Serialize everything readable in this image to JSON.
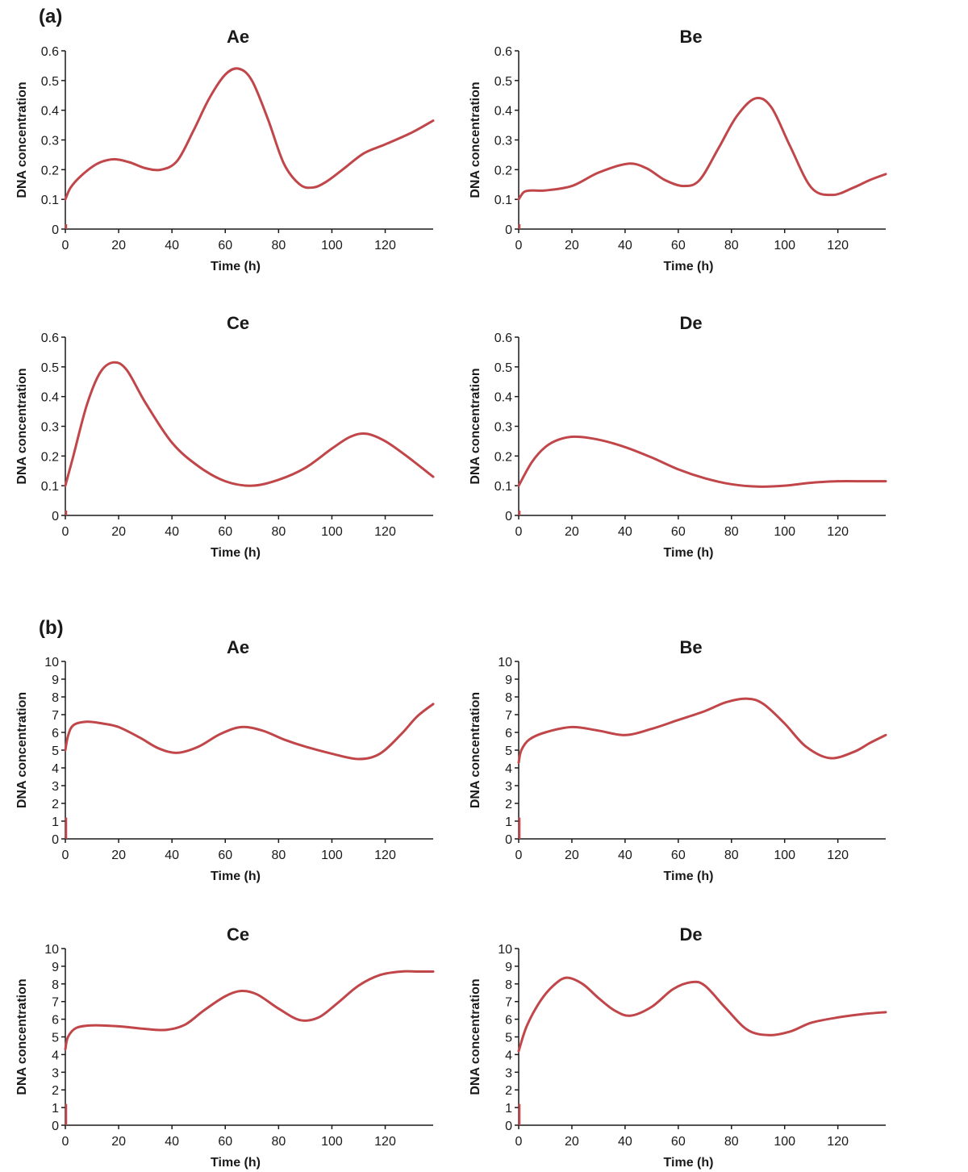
{
  "series_color": "#c0464a",
  "panels": [
    {
      "label": "(a)"
    },
    {
      "label": "(b)"
    }
  ],
  "chart_data": [
    {
      "type": "line",
      "panel": "(a)",
      "title": "Ae",
      "xlabel": "Time (h)",
      "ylabel": "DNA concentration",
      "xlim": [
        0,
        138
      ],
      "ylim": [
        0,
        0.6
      ],
      "xticks": [
        0,
        20,
        40,
        60,
        80,
        100,
        120
      ],
      "yticks": [
        0,
        0.1,
        0.2,
        0.3,
        0.4,
        0.5,
        0.6
      ],
      "ytick_labels": [
        "0",
        "0.1",
        "0.2",
        "0.3",
        "0.4",
        "0.5",
        "0.6"
      ],
      "series": [
        {
          "name": "Ae",
          "x": [
            0,
            2,
            6,
            12,
            18,
            24,
            30,
            36,
            42,
            48,
            54,
            60,
            65,
            70,
            76,
            82,
            88,
            93,
            98,
            104,
            112,
            120,
            130,
            138
          ],
          "y": [
            0.1,
            0.14,
            0.18,
            0.22,
            0.235,
            0.225,
            0.205,
            0.2,
            0.23,
            0.33,
            0.44,
            0.52,
            0.54,
            0.5,
            0.37,
            0.22,
            0.15,
            0.14,
            0.16,
            0.2,
            0.255,
            0.285,
            0.325,
            0.365
          ]
        }
      ]
    },
    {
      "type": "line",
      "panel": "(a)",
      "title": "Be",
      "xlabel": "Time (h)",
      "ylabel": "DNA concentration",
      "xlim": [
        0,
        138
      ],
      "ylim": [
        0,
        0.6
      ],
      "xticks": [
        0,
        20,
        40,
        60,
        80,
        100,
        120
      ],
      "yticks": [
        0,
        0.1,
        0.2,
        0.3,
        0.4,
        0.5,
        0.6
      ],
      "ytick_labels": [
        "0",
        "0.1",
        "0.2",
        "0.3",
        "0.4",
        "0.5",
        "0.6"
      ],
      "series": [
        {
          "name": "Be",
          "x": [
            0,
            2,
            5,
            10,
            20,
            30,
            41,
            48,
            55,
            62,
            68,
            75,
            82,
            89,
            95,
            102,
            110,
            118,
            126,
            132,
            138
          ],
          "y": [
            0.1,
            0.125,
            0.13,
            0.13,
            0.145,
            0.19,
            0.22,
            0.205,
            0.165,
            0.145,
            0.165,
            0.27,
            0.38,
            0.44,
            0.41,
            0.28,
            0.14,
            0.115,
            0.14,
            0.165,
            0.185
          ]
        }
      ]
    },
    {
      "type": "line",
      "panel": "(a)",
      "title": "Ce",
      "xlabel": "Time (h)",
      "ylabel": "DNA concentration",
      "xlim": [
        0,
        138
      ],
      "ylim": [
        0,
        0.6
      ],
      "xticks": [
        0,
        20,
        40,
        60,
        80,
        100,
        120
      ],
      "yticks": [
        0,
        0.1,
        0.2,
        0.3,
        0.4,
        0.5,
        0.6
      ],
      "ytick_labels": [
        "0",
        "0.1",
        "0.2",
        "0.3",
        "0.4",
        "0.5",
        "0.6"
      ],
      "series": [
        {
          "name": "Ce",
          "x": [
            0,
            3,
            8,
            13,
            18,
            23,
            30,
            40,
            50,
            60,
            70,
            80,
            90,
            100,
            107,
            113,
            120,
            128,
            138
          ],
          "y": [
            0.1,
            0.2,
            0.37,
            0.48,
            0.515,
            0.49,
            0.38,
            0.245,
            0.165,
            0.115,
            0.1,
            0.12,
            0.16,
            0.225,
            0.265,
            0.275,
            0.25,
            0.2,
            0.13
          ]
        }
      ]
    },
    {
      "type": "line",
      "panel": "(a)",
      "title": "De",
      "xlabel": "Time (h)",
      "ylabel": "DNA concentration",
      "xlim": [
        0,
        138
      ],
      "ylim": [
        0,
        0.6
      ],
      "xticks": [
        0,
        20,
        40,
        60,
        80,
        100,
        120
      ],
      "yticks": [
        0,
        0.1,
        0.2,
        0.3,
        0.4,
        0.5,
        0.6
      ],
      "ytick_labels": [
        "0",
        "0.1",
        "0.2",
        "0.3",
        "0.4",
        "0.5",
        "0.6"
      ],
      "series": [
        {
          "name": "De",
          "x": [
            0,
            5,
            10,
            15,
            21,
            30,
            40,
            50,
            60,
            70,
            80,
            90,
            100,
            110,
            120,
            130,
            138
          ],
          "y": [
            0.1,
            0.18,
            0.23,
            0.255,
            0.265,
            0.255,
            0.23,
            0.195,
            0.155,
            0.125,
            0.105,
            0.097,
            0.1,
            0.11,
            0.115,
            0.115,
            0.115
          ]
        }
      ]
    },
    {
      "type": "line",
      "panel": "(b)",
      "title": "Ae",
      "xlabel": "Time (h)",
      "ylabel": "DNA concentration",
      "xlim": [
        0,
        138
      ],
      "ylim": [
        0,
        10
      ],
      "xticks": [
        0,
        20,
        40,
        60,
        80,
        100,
        120
      ],
      "yticks": [
        0,
        1,
        2,
        3,
        4,
        5,
        6,
        7,
        8,
        9,
        10
      ],
      "ytick_labels": [
        "0",
        "1",
        "2",
        "3",
        "4",
        "5",
        "6",
        "7",
        "8",
        "9",
        "10"
      ],
      "series": [
        {
          "name": "Ae",
          "x": [
            0,
            1,
            3,
            8,
            14,
            20,
            28,
            35,
            42,
            50,
            58,
            66,
            74,
            82,
            90,
            100,
            110,
            118,
            126,
            132,
            138
          ],
          "y": [
            5.0,
            5.8,
            6.4,
            6.6,
            6.5,
            6.3,
            5.7,
            5.1,
            4.85,
            5.2,
            5.9,
            6.3,
            6.1,
            5.6,
            5.2,
            4.8,
            4.5,
            4.8,
            5.9,
            6.9,
            7.6
          ]
        }
      ]
    },
    {
      "type": "line",
      "panel": "(b)",
      "title": "Be",
      "xlabel": "Time (h)",
      "ylabel": "DNA concentration",
      "xlim": [
        0,
        138
      ],
      "ylim": [
        0,
        10
      ],
      "xticks": [
        0,
        20,
        40,
        60,
        80,
        100,
        120
      ],
      "yticks": [
        0,
        1,
        2,
        3,
        4,
        5,
        6,
        7,
        8,
        9,
        10
      ],
      "ytick_labels": [
        "0",
        "1",
        "2",
        "3",
        "4",
        "5",
        "6",
        "7",
        "8",
        "9",
        "10"
      ],
      "series": [
        {
          "name": "Be",
          "x": [
            0,
            1,
            4,
            10,
            20,
            30,
            40,
            50,
            60,
            70,
            78,
            86,
            92,
            100,
            108,
            117,
            126,
            132,
            138
          ],
          "y": [
            4.3,
            5.0,
            5.6,
            6.0,
            6.3,
            6.1,
            5.85,
            6.2,
            6.7,
            7.2,
            7.7,
            7.9,
            7.6,
            6.5,
            5.2,
            4.55,
            4.9,
            5.4,
            5.85
          ]
        }
      ]
    },
    {
      "type": "line",
      "panel": "(b)",
      "title": "Ce",
      "xlabel": "Time (h)",
      "ylabel": "DNA concentration",
      "xlim": [
        0,
        138
      ],
      "ylim": [
        0,
        10
      ],
      "xticks": [
        0,
        20,
        40,
        60,
        80,
        100,
        120
      ],
      "yticks": [
        0,
        1,
        2,
        3,
        4,
        5,
        6,
        7,
        8,
        9,
        10
      ],
      "ytick_labels": [
        "0",
        "1",
        "2",
        "3",
        "4",
        "5",
        "6",
        "7",
        "8",
        "9",
        "10"
      ],
      "series": [
        {
          "name": "Ce",
          "x": [
            0,
            1,
            4,
            10,
            20,
            30,
            38,
            45,
            52,
            60,
            66,
            72,
            80,
            88,
            95,
            102,
            110,
            118,
            126,
            132,
            138
          ],
          "y": [
            4.3,
            5.0,
            5.5,
            5.65,
            5.6,
            5.45,
            5.4,
            5.7,
            6.5,
            7.3,
            7.6,
            7.4,
            6.6,
            5.95,
            6.1,
            6.9,
            7.9,
            8.5,
            8.7,
            8.7,
            8.7
          ]
        }
      ]
    },
    {
      "type": "line",
      "panel": "(b)",
      "title": "De",
      "xlabel": "Time (h)",
      "ylabel": "DNA concentration",
      "xlim": [
        0,
        138
      ],
      "ylim": [
        0,
        10
      ],
      "xticks": [
        0,
        20,
        40,
        60,
        80,
        100,
        120
      ],
      "yticks": [
        0,
        1,
        2,
        3,
        4,
        5,
        6,
        7,
        8,
        9,
        10
      ],
      "ytick_labels": [
        "0",
        "1",
        "2",
        "3",
        "4",
        "5",
        "6",
        "7",
        "8",
        "9",
        "10"
      ],
      "series": [
        {
          "name": "De",
          "x": [
            0,
            3,
            8,
            13,
            18,
            24,
            30,
            36,
            42,
            50,
            58,
            65,
            70,
            78,
            86,
            94,
            102,
            110,
            120,
            130,
            138
          ],
          "y": [
            4.2,
            5.6,
            7.0,
            7.9,
            8.35,
            8.0,
            7.2,
            6.5,
            6.2,
            6.7,
            7.7,
            8.1,
            7.9,
            6.6,
            5.4,
            5.1,
            5.3,
            5.8,
            6.1,
            6.3,
            6.4
          ]
        }
      ]
    }
  ]
}
